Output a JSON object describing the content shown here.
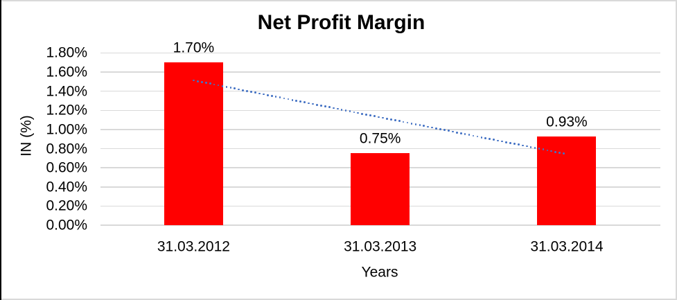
{
  "window": {
    "background": "#FFFFFF",
    "border_color": "#D9D9D9",
    "left_edge_color": "#000000"
  },
  "chart_data": {
    "type": "bar",
    "title": "Net Profit Margin",
    "xlabel": "Years",
    "ylabel": "IN (%)",
    "categories": [
      "31.03.2012",
      "31.03.2013",
      "31.03.2014"
    ],
    "values": [
      1.7,
      0.75,
      0.93
    ],
    "data_labels": [
      "1.70%",
      "0.75%",
      "0.93%"
    ],
    "y_ticks": [
      "0.00%",
      "0.20%",
      "0.40%",
      "0.60%",
      "0.80%",
      "1.00%",
      "1.20%",
      "1.40%",
      "1.60%",
      "1.80%"
    ],
    "ylim": [
      0,
      1.8
    ],
    "grid": true,
    "legend": "none",
    "bar_color": "#FF0000",
    "text_color": "#000000",
    "gridline_color": "#D9D9D9",
    "trendline": {
      "type": "linear",
      "style": "dotted",
      "color": "#4472C4",
      "start_category": "31.03.2012",
      "start_value": 1.512,
      "end_category": "31.03.2014",
      "end_value": 0.742
    }
  }
}
